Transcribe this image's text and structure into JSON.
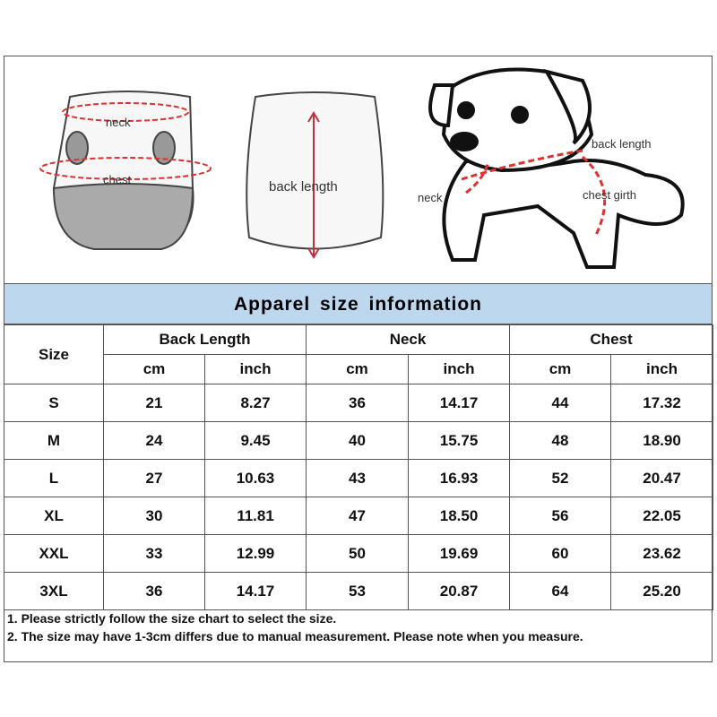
{
  "illustrations": {
    "vest_front": {
      "neck": "neck",
      "chest": "chest"
    },
    "vest_back": {
      "back_length": "back length"
    },
    "dog": {
      "back_length": "back length",
      "neck": "neck",
      "chest_girth": "chest girth"
    }
  },
  "table": {
    "title": "Apparel size information",
    "size_header": "Size",
    "groups": [
      "Back Length",
      "Neck",
      "Chest"
    ],
    "units": [
      "cm",
      "inch",
      "cm",
      "inch",
      "cm",
      "inch"
    ],
    "rows": [
      [
        "S",
        "21",
        "8.27",
        "36",
        "14.17",
        "44",
        "17.32"
      ],
      [
        "M",
        "24",
        "9.45",
        "40",
        "15.75",
        "48",
        "18.90"
      ],
      [
        "L",
        "27",
        "10.63",
        "43",
        "16.93",
        "52",
        "20.47"
      ],
      [
        "XL",
        "30",
        "11.81",
        "47",
        "18.50",
        "56",
        "22.05"
      ],
      [
        "XXL",
        "33",
        "12.99",
        "50",
        "19.69",
        "60",
        "23.62"
      ],
      [
        "3XL",
        "36",
        "14.17",
        "53",
        "20.87",
        "64",
        "25.20"
      ]
    ]
  },
  "notes": [
    "1. Please strictly follow the size chart  to select the size.",
    "2. The size may have 1-3cm differs due to manual measurement. Please note when you measure."
  ]
}
